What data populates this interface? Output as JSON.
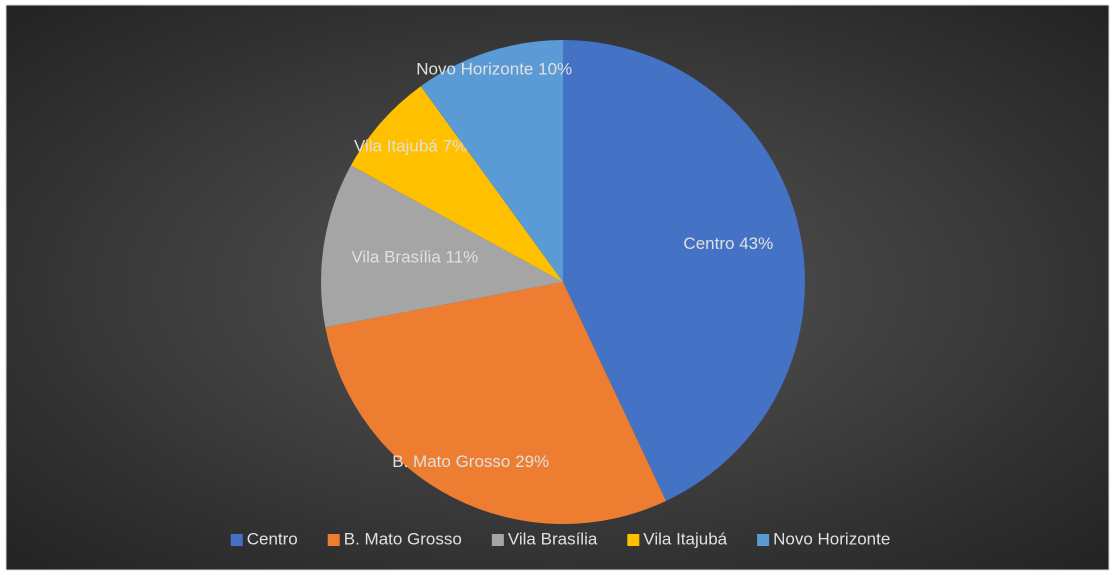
{
  "chart_data": {
    "type": "pie",
    "categories": [
      "Centro",
      "B. Mato Grosso",
      "Vila Brasília",
      "Vila Itajubá",
      "Novo Horizonte"
    ],
    "values": [
      43,
      29,
      11,
      7,
      10
    ],
    "value_labels": [
      "43%",
      "29%",
      "11%",
      "7%",
      "10%"
    ],
    "colors": [
      "#4472c4",
      "#ed7d31",
      "#a5a5a5",
      "#ffc000",
      "#5b9bd5"
    ],
    "legend": "bottom"
  }
}
